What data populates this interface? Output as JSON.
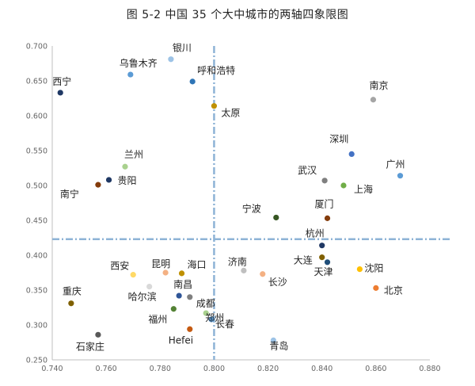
{
  "title": "图 5-2 中国 35 个大中城市的两轴四象限图",
  "chart_data": {
    "type": "scatter",
    "title": "图 5-2 中国 35 个大中城市的两轴四象限图",
    "xlabel": "",
    "ylabel": "",
    "xlim": [
      0.74,
      0.88
    ],
    "ylim": [
      0.25,
      0.7
    ],
    "x_ticks": [
      "0.740",
      "0.760",
      "0.780",
      "0.800",
      "0.820",
      "0.840",
      "0.860",
      "0.880"
    ],
    "y_ticks": [
      "0.250",
      "0.300",
      "0.350",
      "0.400",
      "0.450",
      "0.500",
      "0.550",
      "0.600",
      "0.650",
      "0.700"
    ],
    "grid": false,
    "reference_lines": {
      "x": 0.8,
      "y": 0.423,
      "color": "#8eb3d6",
      "style": "dash-dot"
    },
    "points": [
      {
        "name": "银川",
        "x": 0.784,
        "y": 0.681,
        "color": "#9dc3e6"
      },
      {
        "name": "乌鲁木齐",
        "x": 0.769,
        "y": 0.659,
        "color": "#5b9bd5"
      },
      {
        "name": "呼和浩特",
        "x": 0.792,
        "y": 0.649,
        "color": "#2e75b6"
      },
      {
        "name": "西宁",
        "x": 0.743,
        "y": 0.633,
        "color": "#1f3864"
      },
      {
        "name": "太原",
        "x": 0.8,
        "y": 0.614,
        "color": "#bf9000"
      },
      {
        "name": "南京",
        "x": 0.859,
        "y": 0.623,
        "color": "#a5a5a5"
      },
      {
        "name": "深圳",
        "x": 0.851,
        "y": 0.545,
        "color": "#4472c4"
      },
      {
        "name": "广州",
        "x": 0.869,
        "y": 0.514,
        "color": "#5b9bd5"
      },
      {
        "name": "兰州",
        "x": 0.767,
        "y": 0.527,
        "color": "#a9d18e"
      },
      {
        "name": "贵阳",
        "x": 0.761,
        "y": 0.508,
        "color": "#1f3864"
      },
      {
        "name": "南宁",
        "x": 0.757,
        "y": 0.501,
        "color": "#843c0c"
      },
      {
        "name": "武汉",
        "x": 0.841,
        "y": 0.507,
        "color": "#7f7f7f"
      },
      {
        "name": "上海",
        "x": 0.848,
        "y": 0.5,
        "color": "#70ad47"
      },
      {
        "name": "宁波",
        "x": 0.823,
        "y": 0.454,
        "color": "#375623"
      },
      {
        "name": "厦门",
        "x": 0.842,
        "y": 0.453,
        "color": "#843c0c"
      },
      {
        "name": "杭州",
        "x": 0.84,
        "y": 0.414,
        "color": "#203864"
      },
      {
        "name": "大连",
        "x": 0.84,
        "y": 0.397,
        "color": "#806000"
      },
      {
        "name": "天津",
        "x": 0.842,
        "y": 0.39,
        "color": "#1f4e79"
      },
      {
        "name": "沈阳",
        "x": 0.854,
        "y": 0.38,
        "color": "#ffc000"
      },
      {
        "name": "北京",
        "x": 0.86,
        "y": 0.353,
        "color": "#ed7d31"
      },
      {
        "name": "济南",
        "x": 0.811,
        "y": 0.378,
        "color": "#bfbfbf"
      },
      {
        "name": "长沙",
        "x": 0.818,
        "y": 0.373,
        "color": "#f4b183"
      },
      {
        "name": "西安",
        "x": 0.77,
        "y": 0.372,
        "color": "#ffd966"
      },
      {
        "name": "昆明",
        "x": 0.782,
        "y": 0.375,
        "color": "#f4b183"
      },
      {
        "name": "海口",
        "x": 0.788,
        "y": 0.374,
        "color": "#bf9000"
      },
      {
        "name": "哈尔滨",
        "x": 0.776,
        "y": 0.355,
        "color": "#d9d9d9"
      },
      {
        "name": "南昌",
        "x": 0.787,
        "y": 0.342,
        "color": "#2f5597"
      },
      {
        "name": "成都",
        "x": 0.791,
        "y": 0.34,
        "color": "#7f7f7f"
      },
      {
        "name": "重庆",
        "x": 0.747,
        "y": 0.331,
        "color": "#7f6000"
      },
      {
        "name": "福州",
        "x": 0.785,
        "y": 0.323,
        "color": "#548235"
      },
      {
        "name": "郑州",
        "x": 0.797,
        "y": 0.317,
        "color": "#a9d18e"
      },
      {
        "name": "长春",
        "x": 0.799,
        "y": 0.308,
        "color": "#5b9bd5"
      },
      {
        "name": "Hefei",
        "x": 0.791,
        "y": 0.294,
        "color": "#c55a11"
      },
      {
        "name": "石家庄",
        "x": 0.757,
        "y": 0.286,
        "color": "#595959"
      },
      {
        "name": "青岛",
        "x": 0.822,
        "y": 0.278,
        "color": "#9dc3e6"
      }
    ]
  }
}
